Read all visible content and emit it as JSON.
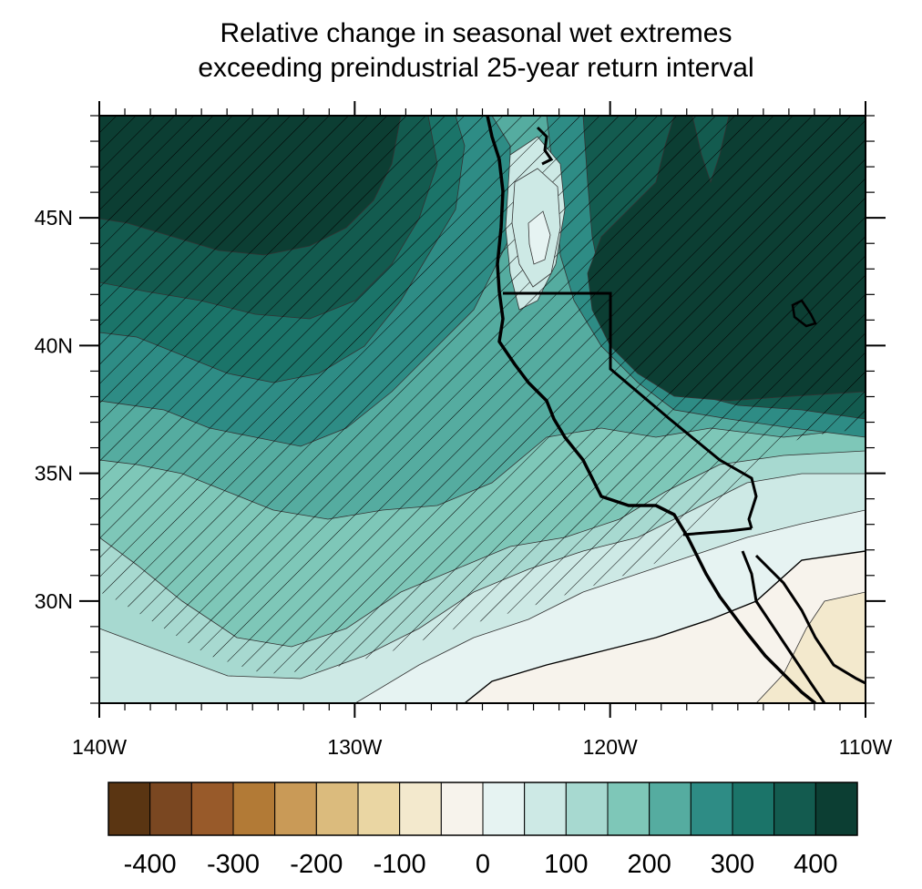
{
  "title": {
    "line1": "Relative change in seasonal wet extremes",
    "line2": "exceeding preindustrial 25-year return interval"
  },
  "axes": {
    "x_ticks": [
      "140W",
      "130W",
      "120W",
      "110W"
    ],
    "y_ticks": [
      "45N",
      "40N",
      "35N",
      "30N"
    ],
    "lon_range": [
      -140,
      -110
    ],
    "lat_range": [
      26,
      49
    ]
  },
  "colorbar": {
    "colors": [
      "#5a3512",
      "#7a4721",
      "#985a2a",
      "#b27a36",
      "#c99a57",
      "#dbbb7d",
      "#ead6a3",
      "#f3e9cd",
      "#f7f3ec",
      "#e6f3f2",
      "#cde9e5",
      "#a7d9d0",
      "#7ec7b8",
      "#55aca0",
      "#2e8c85",
      "#1b7469",
      "#135b4f",
      "#0c3e33"
    ],
    "labels": [
      "-400",
      "-300",
      "-200",
      "-100",
      "0",
      "100",
      "200",
      "300",
      "400"
    ]
  },
  "hatching": "significance"
}
